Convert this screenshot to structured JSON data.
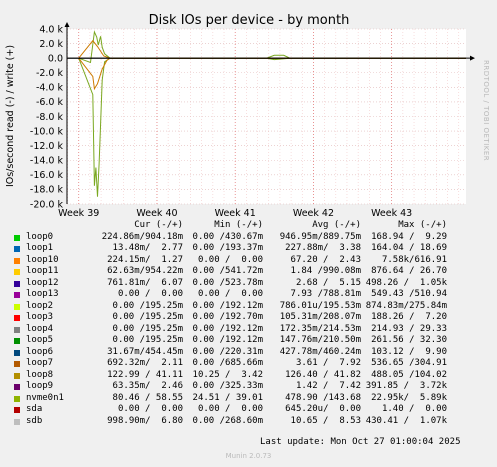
{
  "chart_data": {
    "type": "line",
    "title": "Disk IOs per device - by month",
    "ylabel": "IOs/second read (-) / write (+)",
    "side_text": "RRDTOOL / TOBI OETIKER",
    "ylim": [
      -20000,
      4000
    ],
    "y_ticks": [
      4000,
      2000,
      0,
      -2000,
      -4000,
      -6000,
      -8000,
      -10000,
      -12000,
      -14000,
      -16000,
      -18000,
      -20000
    ],
    "y_tick_labels": [
      "4.0 k",
      "2.0 k",
      "0.0",
      "-2.0 k",
      "-4.0 k",
      "-6.0 k",
      "-8.0 k",
      "-10.0 k",
      "-12.0 k",
      "-14.0 k",
      "-16.0 k",
      "-18.0 k",
      "-20.0 k"
    ],
    "x_ticks": [
      39,
      40,
      41,
      42,
      43
    ],
    "x_tick_labels": [
      "Week 39",
      "Week 40",
      "Week 41",
      "Week 42",
      "Week 43"
    ],
    "xlim": [
      38.85,
      43.95
    ],
    "series": [
      {
        "name": "nvme0n1",
        "color": "#7aa820",
        "points": [
          [
            39.0,
            0
          ],
          [
            39.15,
            -600
          ],
          [
            39.2,
            3600
          ],
          [
            39.23,
            2900
          ],
          [
            39.25,
            1800
          ],
          [
            39.28,
            3000
          ],
          [
            39.3,
            1500
          ],
          [
            39.33,
            600
          ],
          [
            39.4,
            0
          ],
          [
            41.4,
            0
          ],
          [
            41.5,
            400
          ],
          [
            41.62,
            400
          ],
          [
            41.7,
            0
          ],
          [
            43.95,
            0
          ]
        ],
        "neg_points": [
          [
            39.0,
            0
          ],
          [
            39.18,
            -5000
          ],
          [
            39.2,
            -17500
          ],
          [
            39.22,
            -15000
          ],
          [
            39.24,
            -19000
          ],
          [
            39.26,
            -14500
          ],
          [
            39.28,
            -9000
          ],
          [
            39.3,
            -3000
          ],
          [
            39.33,
            -500
          ],
          [
            39.4,
            0
          ],
          [
            41.4,
            0
          ],
          [
            41.5,
            -200
          ],
          [
            41.7,
            0
          ],
          [
            43.95,
            0
          ]
        ]
      },
      {
        "name": "loop7",
        "color": "#cc7a00",
        "points": [
          [
            39.0,
            0
          ],
          [
            39.18,
            2400
          ],
          [
            39.24,
            1600
          ],
          [
            39.32,
            300
          ],
          [
            39.4,
            0
          ],
          [
            43.95,
            0
          ]
        ],
        "neg_points": [
          [
            39.0,
            0
          ],
          [
            39.18,
            -2500
          ],
          [
            39.2,
            -4200
          ],
          [
            39.24,
            -3500
          ],
          [
            39.3,
            -1500
          ],
          [
            39.36,
            -300
          ],
          [
            39.4,
            0
          ],
          [
            43.95,
            0
          ]
        ]
      },
      {
        "name": "sdb",
        "color": "#000000",
        "points": [
          [
            38.85,
            0
          ],
          [
            43.95,
            0
          ]
        ]
      }
    ],
    "legend_header": {
      "cur": "Cur (-/+)",
      "min": "Min (-/+)",
      "avg": "Avg (-/+)",
      "max": "Max (-/+)"
    },
    "legend": [
      {
        "name": "loop0",
        "color": "#00cc00",
        "cur": "224.86m/904.18m",
        "min": "0.00 /430.67m",
        "avg": "946.95m/889.75m",
        "max": "168.94 /  9.29"
      },
      {
        "name": "loop1",
        "color": "#0066b3",
        "cur": "13.48m/  2.77",
        "min": "0.00 /193.37m",
        "avg": "227.88m/  3.38",
        "max": "164.04 / 18.69"
      },
      {
        "name": "loop10",
        "color": "#ff8000",
        "cur": "224.15m/  1.27",
        "min": "0.00 /  0.00",
        "avg": "67.20 /  2.43",
        "max": "7.58k/616.91"
      },
      {
        "name": "loop11",
        "color": "#ffcc00",
        "cur": "62.63m/954.22m",
        "min": "0.00 /541.72m",
        "avg": "1.84 /990.08m",
        "max": "876.64 / 26.70"
      },
      {
        "name": "loop12",
        "color": "#330099",
        "cur": "761.81m/  6.07",
        "min": "0.00 /523.78m",
        "avg": "2.68 /  5.15",
        "max": "498.26 /  1.05k"
      },
      {
        "name": "loop13",
        "color": "#990099",
        "cur": "0.00 /  0.00",
        "min": "0.00 /  0.00",
        "avg": "7.93 /788.81m",
        "max": "549.43 /510.94"
      },
      {
        "name": "loop2",
        "color": "#ccff00",
        "cur": "0.00 /195.25m",
        "min": "0.00 /192.12m",
        "avg": "786.01u/195.53m",
        "max": "874.83m/275.84m"
      },
      {
        "name": "loop3",
        "color": "#ff0000",
        "cur": "0.00 /195.25m",
        "min": "0.00 /192.70m",
        "avg": "105.31m/208.07m",
        "max": "188.26 /  7.20"
      },
      {
        "name": "loop4",
        "color": "#808080",
        "cur": "0.00 /195.25m",
        "min": "0.00 /192.12m",
        "avg": "172.35m/214.53m",
        "max": "214.93 / 29.33"
      },
      {
        "name": "loop5",
        "color": "#008f00",
        "cur": "0.00 /195.25m",
        "min": "0.00 /192.12m",
        "avg": "147.76m/210.50m",
        "max": "261.56 / 32.30"
      },
      {
        "name": "loop6",
        "color": "#00487d",
        "cur": "31.67m/454.45m",
        "min": "0.00 /220.31m",
        "avg": "427.78m/460.24m",
        "max": "103.12 /  9.90"
      },
      {
        "name": "loop7",
        "color": "#b35a00",
        "cur": "692.32m/  2.11",
        "min": "0.00 /685.66m",
        "avg": "3.61 /  7.92",
        "max": "536.65 /304.91"
      },
      {
        "name": "loop8",
        "color": "#b38f00",
        "cur": "122.99 / 41.11",
        "min": "10.25 /  3.42",
        "avg": "126.40 / 41.82",
        "max": "488.05 /104.02"
      },
      {
        "name": "loop9",
        "color": "#6b006b",
        "cur": "63.35m/  2.46",
        "min": "0.00 /325.33m",
        "avg": "1.42 /  7.42",
        "max": "391.85 /  3.72k"
      },
      {
        "name": "nvme0n1",
        "color": "#8fb300",
        "cur": "80.46 / 58.55",
        "min": "24.51 / 39.01",
        "avg": "478.90 /143.68",
        "max": "22.95k/  5.89k"
      },
      {
        "name": "sda",
        "color": "#b30000",
        "cur": "0.00 /  0.00",
        "min": "0.00 /  0.00",
        "avg": "645.20u/  0.00",
        "max": "1.40 /  0.00"
      },
      {
        "name": "sdb",
        "color": "#bebebe",
        "cur": "998.90m/  6.80",
        "min": "0.00 /268.60m",
        "avg": "10.65 /  8.53",
        "max": "430.41 /  1.07k"
      }
    ]
  },
  "last_update": "Last update: Mon Oct 27 01:00:04 2025",
  "footer": "Munin 2.0.73"
}
